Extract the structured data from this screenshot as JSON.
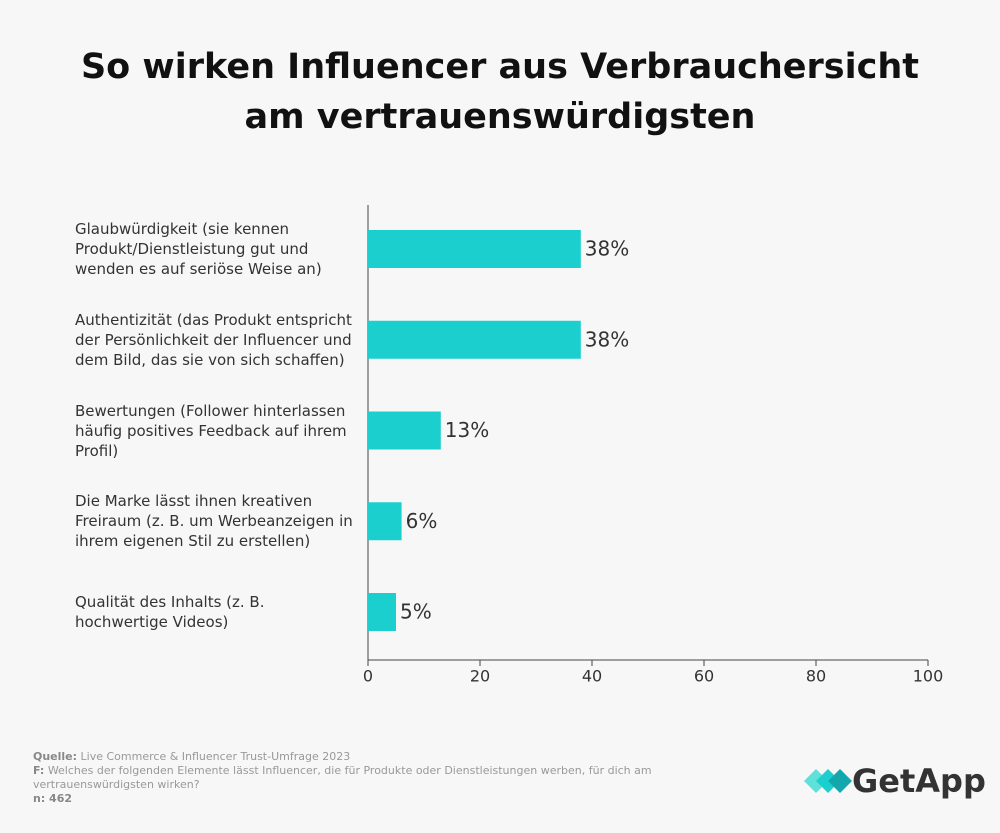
{
  "chart_data": {
    "type": "bar",
    "orientation": "horizontal",
    "title": "So wirken Influencer aus Verbrauchersicht am vertrauenswürdigsten",
    "categories": [
      "Glaubwürdigkeit (sie kennen Produkt/Dienstleistung gut und wenden es auf seriöse Weise an)",
      "Authentizität (das Produkt entspricht der Persönlichkeit der Influencer und dem Bild, das sie von sich schaffen)",
      "Bewertungen (Follower hinterlassen häufig positives Feedback auf ihrem Profil)",
      "Die Marke lässt ihnen kreativen Freiraum (z. B. um Werbeanzeigen in ihrem eigenen Stil zu erstellen)",
      "Qualität des Inhalts (z. B. hochwertige Videos)"
    ],
    "values": [
      38,
      38,
      13,
      6,
      5
    ],
    "value_labels": [
      "38%",
      "38%",
      "13%",
      "6%",
      "5%"
    ],
    "color": "#1ccfcf",
    "xlim": [
      0,
      100
    ],
    "xticks": [
      0,
      20,
      40,
      60,
      80,
      100
    ],
    "grid": false
  },
  "footer": {
    "source_label": "Quelle:",
    "source": "Live Commerce & Influencer Trust-Umfrage 2023",
    "question_label": "F:",
    "question": "Welches der folgenden Elemente lässt Influencer, die für Produkte oder Dienstleistungen werben, für dich am vertrauenswürdigsten wirken?",
    "n": "n: 462"
  },
  "logo": "GetApp"
}
